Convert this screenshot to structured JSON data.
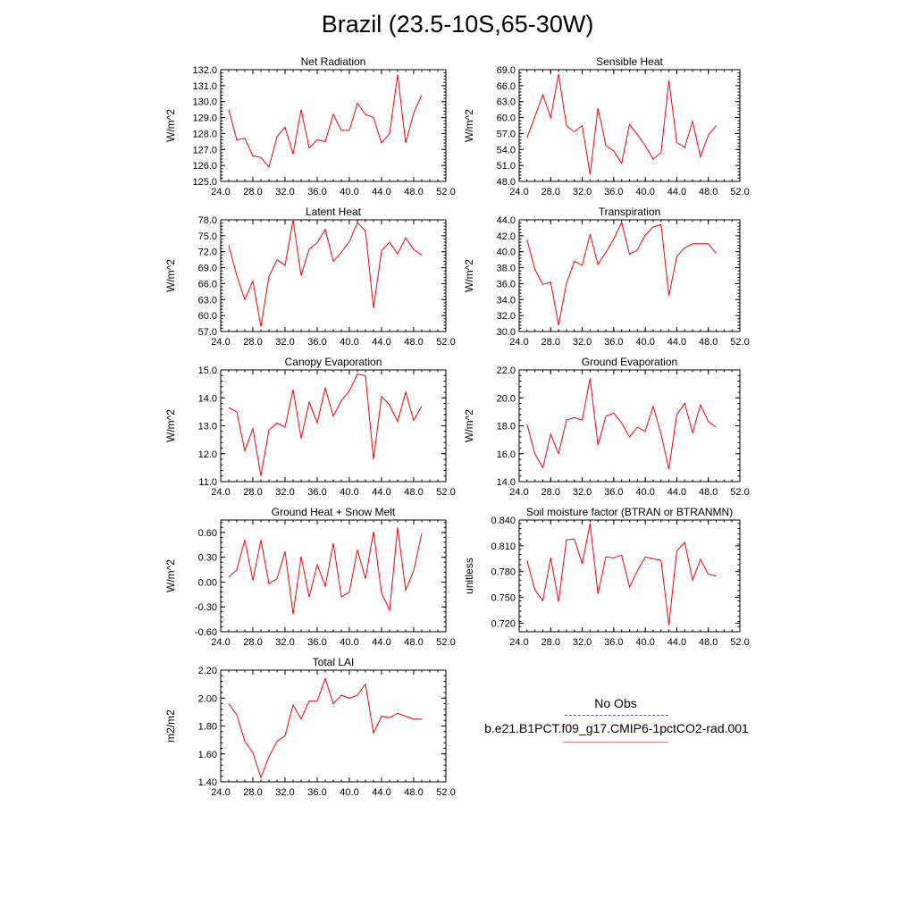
{
  "title": "Brazil (23.5-10S,65-30W)",
  "legend": {
    "no_obs": "No Obs",
    "case_name": "b.e21.B1PCT.f09_g17.CMIP6-1pctCO2-rad.001",
    "obs_color": "#5050c8",
    "case_color": "#ff0000"
  },
  "chart_data": [
    {
      "type": "line",
      "title": "Net Radiation",
      "xlabel": "",
      "ylabel": "W/m^2",
      "xlim": [
        24,
        52
      ],
      "ylim": [
        125,
        132
      ],
      "xticks": [
        "24.0",
        "28.0",
        "32.0",
        "36.0",
        "40.0",
        "44.0",
        "48.0",
        "52.0"
      ],
      "yticks": [
        "125.0",
        "126.0",
        "127.0",
        "128.0",
        "129.0",
        "130.0",
        "131.0",
        "132.0"
      ],
      "x": [
        25,
        26,
        27,
        28,
        29,
        30,
        31,
        32,
        33,
        34,
        35,
        36,
        37,
        38,
        39,
        40,
        41,
        42,
        43,
        44,
        45,
        46,
        47,
        48,
        49
      ],
      "series": [
        {
          "color": "#ff0000",
          "values": [
            129.5,
            127.6,
            127.7,
            126.6,
            126.5,
            125.9,
            127.8,
            128.4,
            126.7,
            129.5,
            127.1,
            127.6,
            127.5,
            129.2,
            128.2,
            128.2,
            129.9,
            129.2,
            129.0,
            127.4,
            128.0,
            131.7,
            127.4,
            129.3,
            130.4
          ]
        }
      ]
    },
    {
      "type": "line",
      "title": "Sensible Heat",
      "xlabel": "",
      "ylabel": "W/m^2",
      "xlim": [
        24,
        52
      ],
      "ylim": [
        48,
        69
      ],
      "xticks": [
        "24.0",
        "28.0",
        "32.0",
        "36.0",
        "40.0",
        "44.0",
        "48.0",
        "52.0"
      ],
      "yticks": [
        "48.0",
        "51.0",
        "54.0",
        "57.0",
        "60.0",
        "63.0",
        "66.0",
        "69.0"
      ],
      "x": [
        25,
        26,
        27,
        28,
        29,
        30,
        31,
        32,
        33,
        34,
        35,
        36,
        37,
        38,
        39,
        40,
        41,
        42,
        43,
        44,
        45,
        46,
        47,
        48,
        49
      ],
      "series": [
        {
          "color": "#ff0000",
          "values": [
            56.2,
            60.2,
            64.3,
            60.0,
            68.2,
            58.5,
            57.3,
            58.5,
            49.3,
            61.8,
            54.8,
            53.7,
            51.4,
            58.7,
            56.8,
            54.7,
            52.2,
            53.4,
            67.0,
            55.3,
            54.4,
            59.3,
            52.6,
            56.7,
            58.5
          ]
        }
      ]
    },
    {
      "type": "line",
      "title": "Latent Heat",
      "xlabel": "",
      "ylabel": "W/m^2",
      "xlim": [
        24,
        52
      ],
      "ylim": [
        57,
        78
      ],
      "xticks": [
        "24.0",
        "28.0",
        "32.0",
        "36.0",
        "40.0",
        "44.0",
        "48.0",
        "52.0"
      ],
      "yticks": [
        "57.0",
        "60.0",
        "63.0",
        "66.0",
        "69.0",
        "72.0",
        "75.0",
        "78.0"
      ],
      "x": [
        25,
        26,
        27,
        28,
        29,
        30,
        31,
        32,
        33,
        34,
        35,
        36,
        37,
        38,
        39,
        40,
        41,
        42,
        43,
        44,
        45,
        46,
        47,
        48,
        49
      ],
      "series": [
        {
          "color": "#ff0000",
          "values": [
            73.2,
            67.5,
            63.0,
            66.5,
            57.9,
            67.3,
            70.5,
            69.4,
            78.0,
            67.5,
            72.5,
            73.7,
            76.2,
            70.2,
            71.9,
            73.9,
            77.5,
            75.9,
            61.4,
            72.2,
            73.8,
            71.6,
            74.6,
            72.4,
            71.4
          ]
        }
      ]
    },
    {
      "type": "line",
      "title": "Transpiration",
      "xlabel": "",
      "ylabel": "W/m^2",
      "xlim": [
        24,
        52
      ],
      "ylim": [
        30,
        44
      ],
      "xticks": [
        "24.0",
        "28.0",
        "32.0",
        "36.0",
        "40.0",
        "44.0",
        "48.0",
        "52.0"
      ],
      "yticks": [
        "30.0",
        "32.0",
        "34.0",
        "36.0",
        "38.0",
        "40.0",
        "42.0",
        "44.0"
      ],
      "x": [
        25,
        26,
        27,
        28,
        29,
        30,
        31,
        32,
        33,
        34,
        35,
        36,
        37,
        38,
        39,
        40,
        41,
        42,
        43,
        44,
        45,
        46,
        47,
        48,
        49
      ],
      "series": [
        {
          "color": "#ff0000",
          "values": [
            41.5,
            37.8,
            35.9,
            36.2,
            30.8,
            36.0,
            38.8,
            38.3,
            42.2,
            38.4,
            39.9,
            41.6,
            43.7,
            39.7,
            40.2,
            42.1,
            43.1,
            43.4,
            34.5,
            39.4,
            40.5,
            41.0,
            41.0,
            41.0,
            39.8
          ]
        }
      ]
    },
    {
      "type": "line",
      "title": "Canopy Evaporation",
      "xlabel": "",
      "ylabel": "W/m^2",
      "xlim": [
        24,
        52
      ],
      "ylim": [
        11,
        15
      ],
      "xticks": [
        "24.0",
        "28.0",
        "32.0",
        "36.0",
        "40.0",
        "44.0",
        "48.0",
        "52.0"
      ],
      "yticks": [
        "11.0",
        "12.0",
        "13.0",
        "14.0",
        "15.0"
      ],
      "x": [
        25,
        26,
        27,
        28,
        29,
        30,
        31,
        32,
        33,
        34,
        35,
        36,
        37,
        38,
        39,
        40,
        41,
        42,
        43,
        44,
        45,
        46,
        47,
        48,
        49
      ],
      "series": [
        {
          "color": "#ff0000",
          "values": [
            13.65,
            13.5,
            12.1,
            12.9,
            11.2,
            12.85,
            13.1,
            12.95,
            14.3,
            12.55,
            13.85,
            13.1,
            14.35,
            13.35,
            13.9,
            14.25,
            14.85,
            14.8,
            11.8,
            14.05,
            13.75,
            13.15,
            14.2,
            13.2,
            13.7
          ]
        }
      ]
    },
    {
      "type": "line",
      "title": "Ground Evaporation",
      "xlabel": "",
      "ylabel": "W/m^2",
      "xlim": [
        24,
        52
      ],
      "ylim": [
        14,
        22
      ],
      "xticks": [
        "24.0",
        "28.0",
        "32.0",
        "36.0",
        "40.0",
        "44.0",
        "48.0",
        "52.0"
      ],
      "yticks": [
        "14.0",
        "16.0",
        "18.0",
        "20.0",
        "22.0"
      ],
      "x": [
        25,
        26,
        27,
        28,
        29,
        30,
        31,
        32,
        33,
        34,
        35,
        36,
        37,
        38,
        39,
        40,
        41,
        42,
        43,
        44,
        45,
        46,
        47,
        48,
        49
      ],
      "series": [
        {
          "color": "#ff0000",
          "values": [
            18.1,
            16.0,
            15.0,
            17.4,
            16.0,
            18.4,
            18.6,
            18.4,
            21.4,
            16.6,
            18.7,
            18.9,
            18.2,
            17.2,
            17.9,
            17.6,
            19.4,
            17.4,
            14.9,
            18.8,
            19.6,
            17.5,
            19.5,
            18.3,
            17.9
          ]
        }
      ]
    },
    {
      "type": "line",
      "title": "Ground Heat + Snow Melt",
      "xlabel": "",
      "ylabel": "W/m^2",
      "xlim": [
        24,
        52
      ],
      "ylim": [
        -0.6,
        0.75
      ],
      "xticks": [
        "24.0",
        "28.0",
        "32.0",
        "36.0",
        "40.0",
        "44.0",
        "48.0",
        "52.0"
      ],
      "yticks": [
        "-0.60",
        "-0.30",
        "0.00",
        "0.30",
        "0.60"
      ],
      "x": [
        25,
        26,
        27,
        28,
        29,
        30,
        31,
        32,
        33,
        34,
        35,
        36,
        37,
        38,
        39,
        40,
        41,
        42,
        43,
        44,
        45,
        46,
        47,
        48,
        49
      ],
      "series": [
        {
          "color": "#ff0000",
          "values": [
            0.06,
            0.15,
            0.51,
            0.02,
            0.51,
            -0.02,
            0.04,
            0.37,
            -0.39,
            0.31,
            -0.18,
            0.21,
            -0.05,
            0.47,
            -0.18,
            -0.12,
            0.39,
            0.04,
            0.61,
            -0.13,
            -0.34,
            0.66,
            -0.1,
            0.14,
            0.59
          ]
        }
      ]
    },
    {
      "type": "line",
      "title": "Soil moisture factor (BTRAN or BTRANMN)",
      "xlabel": "",
      "ylabel": "unitless",
      "xlim": [
        24,
        52
      ],
      "ylim": [
        0.71,
        0.84
      ],
      "xticks": [
        "24.0",
        "28.0",
        "32.0",
        "36.0",
        "40.0",
        "44.0",
        "48.0",
        "52.0"
      ],
      "yticks": [
        "0.720",
        "0.750",
        "0.780",
        "0.810",
        "0.840"
      ],
      "x": [
        25,
        26,
        27,
        28,
        29,
        30,
        31,
        32,
        33,
        34,
        35,
        36,
        37,
        38,
        39,
        40,
        41,
        42,
        43,
        44,
        45,
        46,
        47,
        48,
        49
      ],
      "series": [
        {
          "color": "#ff0000",
          "values": [
            0.793,
            0.759,
            0.746,
            0.796,
            0.745,
            0.817,
            0.818,
            0.789,
            0.836,
            0.754,
            0.797,
            0.796,
            0.799,
            0.762,
            0.781,
            0.797,
            0.795,
            0.793,
            0.718,
            0.804,
            0.814,
            0.77,
            0.794,
            0.777,
            0.775
          ]
        }
      ]
    },
    {
      "type": "line",
      "title": "Total LAI",
      "xlabel": "",
      "ylabel": "m2/m2",
      "xlim": [
        24,
        52
      ],
      "ylim": [
        1.4,
        2.2
      ],
      "xticks": [
        "24.0",
        "28.0",
        "32.0",
        "36.0",
        "40.0",
        "44.0",
        "48.0",
        "52.0"
      ],
      "yticks": [
        "1.40",
        "1.60",
        "1.80",
        "2.00",
        "2.20"
      ],
      "x": [
        25,
        26,
        27,
        28,
        29,
        30,
        31,
        32,
        33,
        34,
        35,
        36,
        37,
        38,
        39,
        40,
        41,
        42,
        43,
        44,
        45,
        46,
        47,
        48,
        49
      ],
      "series": [
        {
          "color": "#ff0000",
          "values": [
            1.96,
            1.88,
            1.69,
            1.61,
            1.43,
            1.58,
            1.69,
            1.73,
            1.95,
            1.85,
            1.98,
            1.98,
            2.14,
            1.96,
            2.02,
            2.0,
            2.02,
            2.1,
            1.75,
            1.87,
            1.86,
            1.89,
            1.87,
            1.85,
            1.85
          ]
        }
      ]
    }
  ]
}
